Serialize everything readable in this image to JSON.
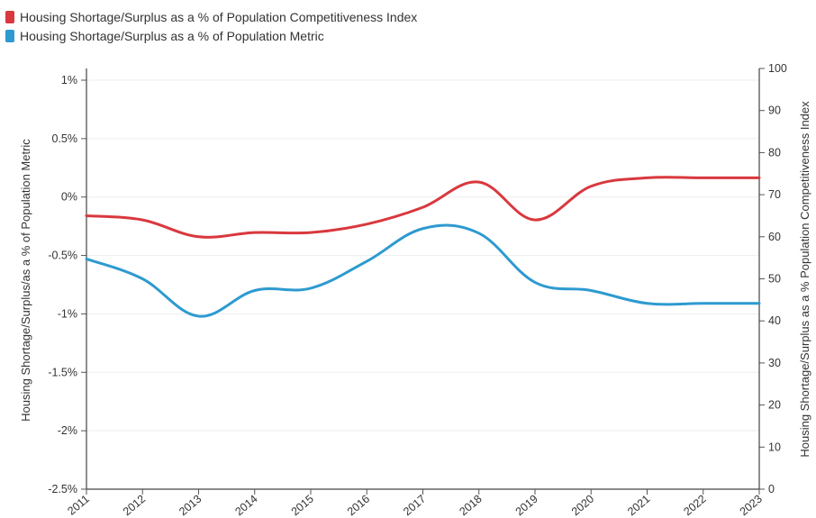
{
  "legend": [
    {
      "label": "Housing Shortage/Surplus as a % of Population Competitiveness Index",
      "color": "#d9383e"
    },
    {
      "label": "Housing Shortage/Surplus as a % of Population Metric",
      "color": "#2e9ad0"
    }
  ],
  "chart_data": {
    "type": "line",
    "x": [
      2011,
      2012,
      2013,
      2014,
      2015,
      2016,
      2017,
      2018,
      2019,
      2020,
      2021,
      2022,
      2023
    ],
    "x_tick_labels": [
      "2011",
      "2012",
      "2013",
      "2014",
      "2015",
      "2016",
      "2017",
      "2018",
      "2019",
      "2020",
      "2021",
      "2022",
      "2023"
    ],
    "left_axis": {
      "label": "Housing Shortage/Surplus/as a % of Population Metric",
      "min": -0.025,
      "max": 0.01,
      "ticks": [
        0.01,
        0.005,
        0,
        -0.005,
        -0.01,
        -0.015,
        -0.02,
        -0.025
      ],
      "tick_labels": [
        "1%",
        "0.5%",
        "0%",
        "-0.5%",
        "-1%",
        "-1.5%",
        "-2%",
        "-2.5%"
      ]
    },
    "right_axis": {
      "label": "Housing Shortage/Surplus as a % Population Competitiveness Index",
      "min": 0,
      "max": 100,
      "ticks": [
        100,
        90,
        80,
        70,
        60,
        50,
        40,
        30,
        20,
        10,
        0
      ],
      "tick_labels": [
        "100",
        "90",
        "80",
        "70",
        "60",
        "50",
        "40",
        "30",
        "20",
        "10",
        "0"
      ]
    },
    "series": [
      {
        "name": "Housing Shortage/Surplus as a % of Population Competitiveness Index",
        "axis": "right",
        "color": "#d9383e",
        "values": [
          65,
          64,
          60,
          61,
          61,
          63,
          67,
          73,
          64,
          72,
          74,
          74,
          74
        ]
      },
      {
        "name": "Housing Shortage/Surplus as a % of Population Metric",
        "axis": "left",
        "color": "#2e9ad0",
        "values": [
          -0.0053,
          -0.007,
          -0.0102,
          -0.008,
          -0.0078,
          -0.0055,
          -0.0027,
          -0.0031,
          -0.0073,
          -0.008,
          -0.0091,
          -0.0091,
          -0.0091
        ]
      }
    ],
    "grid": true
  }
}
